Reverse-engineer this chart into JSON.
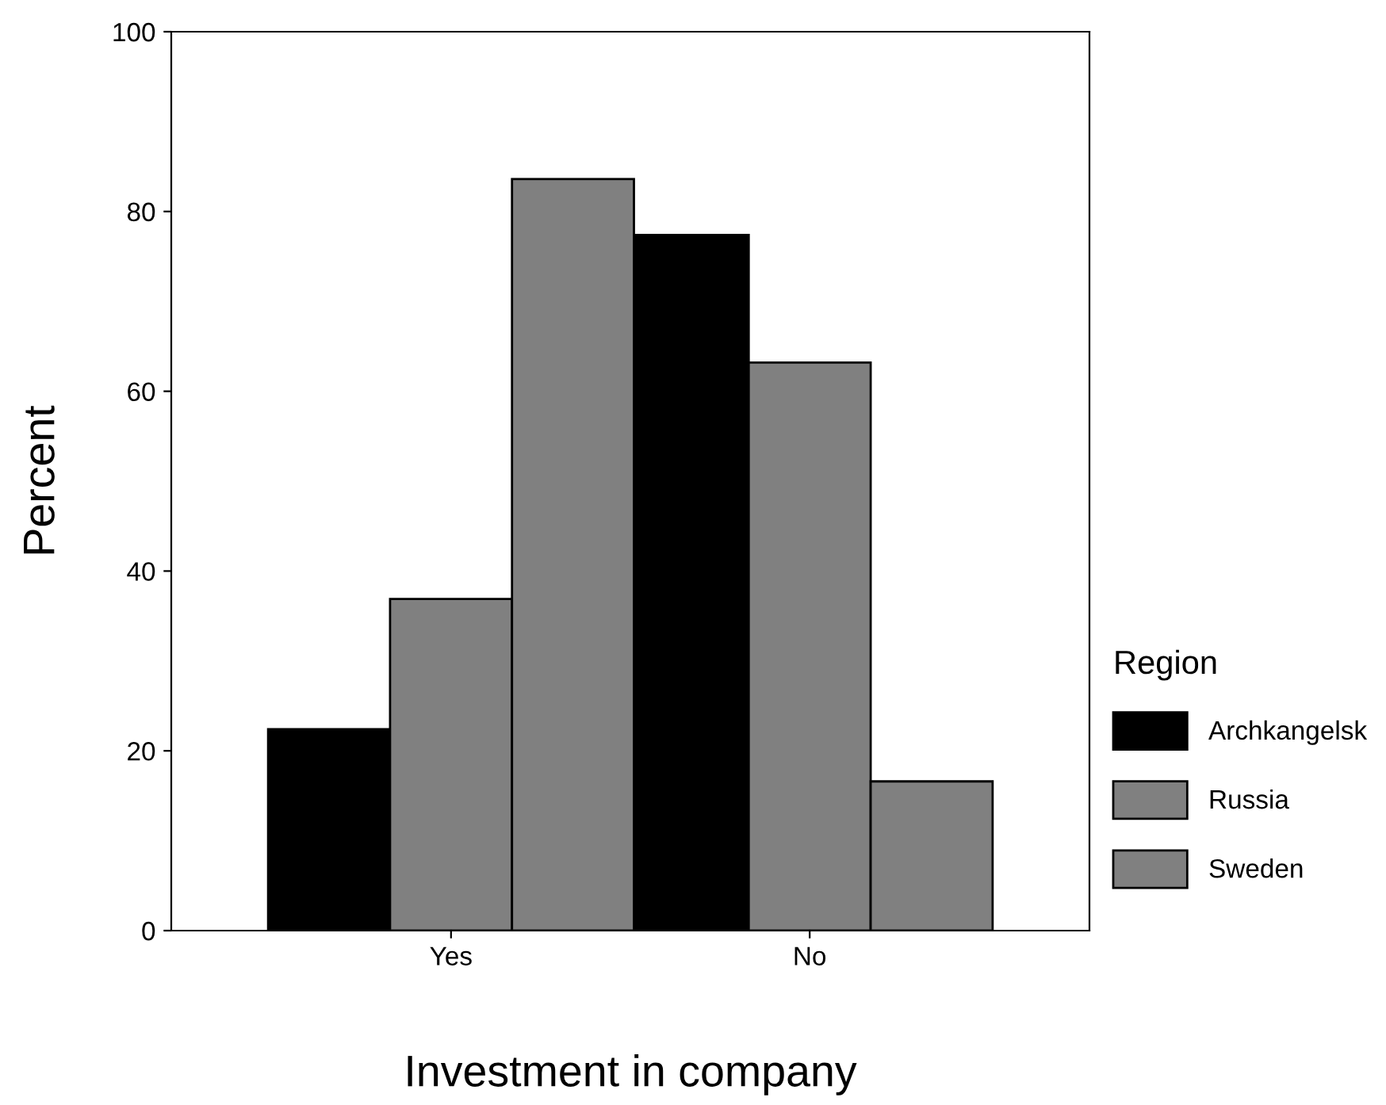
{
  "chart_data": {
    "type": "bar",
    "xlabel": "Investment in company",
    "ylabel": "Percent",
    "legend_title": "Region",
    "categories": [
      "Yes",
      "No"
    ],
    "series": [
      {
        "name": "Archkangelsk",
        "color": "#000000",
        "values": [
          22.4,
          77.4
        ]
      },
      {
        "name": "Russia",
        "color": "#808080",
        "values": [
          36.9,
          63.2
        ]
      },
      {
        "name": "Sweden",
        "color": "#808080",
        "values": [
          83.6,
          16.6
        ]
      }
    ],
    "ylim": [
      0,
      100
    ],
    "yticks": [
      0,
      20,
      40,
      60,
      80,
      100
    ],
    "grid": false,
    "legend": "right"
  }
}
